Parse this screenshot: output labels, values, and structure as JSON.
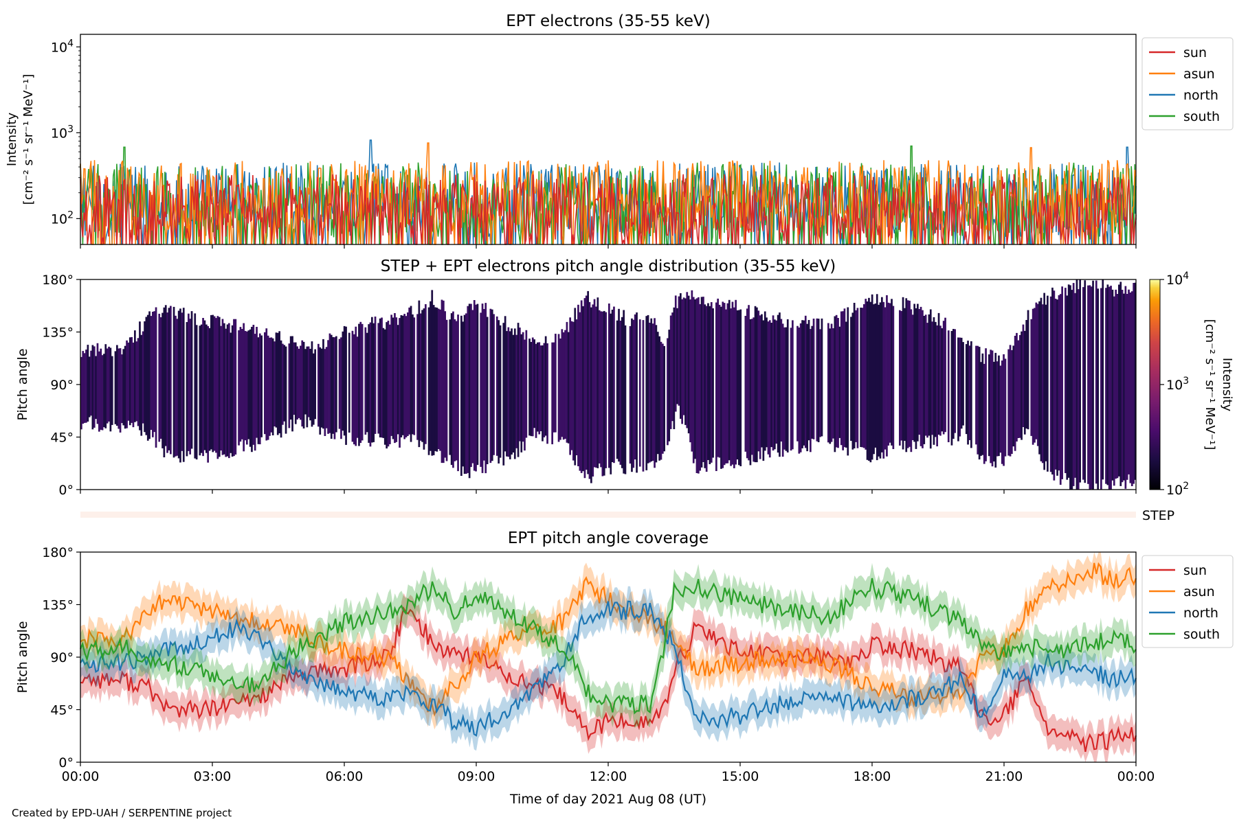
{
  "figure": {
    "credit": "Created by EPD-UAH / SERPENTINE project"
  },
  "chart_data": [
    {
      "type": "line",
      "title": "EPT electrons (35-55 keV)",
      "xlabel": "",
      "ylabel_line1": "Intensity",
      "ylabel_line2": "[cm⁻² s⁻¹ sr⁻¹ MeV⁻¹]",
      "yscale": "log",
      "ylim": [
        50,
        14000
      ],
      "xlim_hours": [
        0,
        24
      ],
      "yticks": [
        {
          "value": 100,
          "base": "10",
          "exp": "2"
        },
        {
          "value": 1000,
          "base": "10",
          "exp": "3"
        },
        {
          "value": 10000,
          "base": "10",
          "exp": "4"
        }
      ],
      "legend_position": "outside-top-right",
      "series": [
        {
          "name": "sun",
          "color": "#d62728",
          "typical_range": [
            55,
            330
          ]
        },
        {
          "name": "asun",
          "color": "#ff7f0e",
          "typical_range": [
            70,
            480
          ]
        },
        {
          "name": "north",
          "color": "#1f77b4",
          "typical_range": [
            60,
            450
          ]
        },
        {
          "name": "south",
          "color": "#2ca02c",
          "typical_range": [
            60,
            450
          ]
        }
      ],
      "draw_order": [
        "north",
        "south",
        "asun",
        "sun"
      ],
      "peaks": [
        {
          "series": "north",
          "x": 6.6,
          "y": 820
        },
        {
          "series": "asun",
          "x": 7.9,
          "y": 760
        },
        {
          "series": "south",
          "x": 1.0,
          "y": 680
        },
        {
          "series": "south",
          "x": 18.9,
          "y": 700
        },
        {
          "series": "asun",
          "x": 21.6,
          "y": 670
        },
        {
          "series": "north",
          "x": 23.8,
          "y": 680
        }
      ]
    },
    {
      "type": "heatmap",
      "title": "STEP + EPT electrons pitch angle distribution (35-55 keV)",
      "ylabel": "Pitch angle",
      "ylim": [
        0,
        180
      ],
      "yticks": [
        "0°",
        "45°",
        "90°",
        "135°",
        "180°"
      ],
      "colorbar": {
        "scale": "log",
        "range": [
          100,
          10000
        ],
        "ticks": [
          {
            "value": 100,
            "base": "10",
            "exp": "2"
          },
          {
            "value": 1000,
            "base": "10",
            "exp": "3"
          },
          {
            "value": 10000,
            "base": "10",
            "exp": "4"
          }
        ],
        "label_line1": "Intensity",
        "label_line2": "[cm⁻² s⁻¹ sr⁻¹ MeV⁻¹]",
        "colormap": "inferno"
      },
      "cell_color": "#3a0f63",
      "typical_intensity": 150
    },
    {
      "type": "heatmap",
      "title": "",
      "label": "STEP",
      "fill_color": "#fdf0ea"
    },
    {
      "type": "area",
      "title": "EPT pitch angle coverage",
      "ylabel": "Pitch angle",
      "xlabel": "Time of day 2021 Aug 08 (UT)",
      "ylim": [
        0,
        180
      ],
      "yticks": [
        "0°",
        "45°",
        "90°",
        "135°",
        "180°"
      ],
      "xticks": [
        "00:00",
        "03:00",
        "06:00",
        "09:00",
        "12:00",
        "15:00",
        "18:00",
        "21:00",
        "00:00"
      ],
      "legend_position": "outside-top-right",
      "band_halfwidth_deg": 13,
      "series": [
        {
          "name": "sun",
          "color": "#d62728",
          "x": [
            0,
            1,
            1.5,
            2,
            3,
            3.5,
            4,
            5,
            6,
            7,
            7.4,
            7.8,
            8,
            8.5,
            9,
            10,
            11,
            11.5,
            12,
            13,
            13.3,
            13.6,
            14,
            15,
            16,
            17,
            17.5,
            18,
            19,
            20,
            20.5,
            21,
            21.5,
            22,
            22.5,
            23,
            23.5,
            24
          ],
          "y": [
            72,
            70,
            65,
            45,
            45,
            50,
            55,
            75,
            80,
            90,
            130,
            115,
            100,
            95,
            90,
            70,
            55,
            25,
            35,
            35,
            50,
            85,
            115,
            95,
            90,
            90,
            85,
            100,
            95,
            80,
            40,
            40,
            70,
            30,
            20,
            15,
            20,
            25
          ]
        },
        {
          "name": "asun",
          "color": "#ff7f0e",
          "x": [
            0,
            1,
            1.5,
            2,
            3,
            3.5,
            4,
            5,
            6,
            7,
            7.5,
            8,
            8.5,
            9,
            10,
            11,
            11.5,
            12,
            13,
            13.5,
            14,
            15,
            16,
            17,
            18,
            19,
            20,
            20.5,
            21,
            21.5,
            22,
            23,
            23.5,
            24
          ],
          "y": [
            105,
            105,
            130,
            140,
            128,
            125,
            120,
            110,
            95,
            90,
            70,
            45,
            65,
            90,
            110,
            120,
            150,
            140,
            120,
            110,
            80,
            85,
            90,
            85,
            65,
            55,
            60,
            90,
            95,
            130,
            150,
            165,
            155,
            160
          ]
        },
        {
          "name": "north",
          "color": "#1f77b4",
          "x": [
            0,
            1,
            1.5,
            2,
            3,
            3.5,
            4,
            5,
            6,
            7,
            7.5,
            8,
            8.5,
            9,
            10,
            11,
            11.5,
            12,
            13,
            13.5,
            14,
            15,
            16,
            17,
            18,
            19,
            20,
            20.5,
            21,
            21.5,
            22,
            23,
            23.5,
            24
          ],
          "y": [
            85,
            85,
            90,
            95,
            108,
            115,
            110,
            75,
            60,
            55,
            60,
            50,
            35,
            30,
            50,
            90,
            125,
            130,
            130,
            100,
            35,
            40,
            50,
            55,
            45,
            55,
            70,
            40,
            80,
            75,
            85,
            80,
            70,
            75
          ]
        },
        {
          "name": "south",
          "color": "#2ca02c",
          "x": [
            0,
            1,
            1.5,
            2,
            3,
            3.5,
            4,
            5,
            6,
            7,
            7.5,
            8,
            8.5,
            9,
            10,
            11,
            11.5,
            12,
            13,
            13.5,
            14,
            15,
            16,
            17,
            18,
            19,
            20,
            20.5,
            21,
            21.5,
            22,
            23,
            23.5,
            24
          ],
          "y": [
            95,
            98,
            85,
            85,
            75,
            70,
            65,
            100,
            120,
            130,
            135,
            150,
            130,
            145,
            120,
            100,
            60,
            50,
            50,
            145,
            150,
            140,
            130,
            125,
            150,
            140,
            120,
            100,
            95,
            100,
            95,
            100,
            110,
            100
          ]
        }
      ]
    }
  ]
}
